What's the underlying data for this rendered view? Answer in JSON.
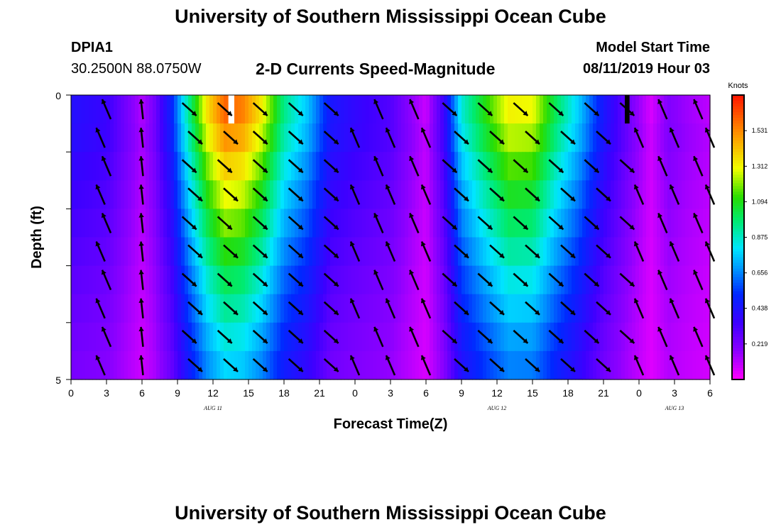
{
  "header": {
    "title": "University of Southern Mississippi Ocean Cube",
    "footer_title": "University of Southern Mississippi Ocean Cube",
    "station_id": "DPIA1",
    "station_location": "30.2500N 88.0750W",
    "subtitle": "2-D Currents Speed-Magnitude",
    "model_start_label": "Model Start Time",
    "model_start_value": "08/11/2019 Hour 03"
  },
  "chart_data": {
    "type": "heatmap",
    "title": "2-D Currents Speed-Magnitude",
    "xlabel": "Forecast Time(Z)",
    "ylabel": "Depth (ft)",
    "x_hours_from_aug11_00": [
      0,
      54
    ],
    "ylim": [
      0,
      5
    ],
    "y_tick_labels": [
      "0",
      "5"
    ],
    "y_tick_count": 6,
    "x_tick_labels": [
      "0",
      "3",
      "6",
      "9",
      "12",
      "15",
      "18",
      "21",
      "0",
      "3",
      "6",
      "9",
      "12",
      "15",
      "18",
      "21",
      "0",
      "3",
      "6"
    ],
    "date_labels": [
      {
        "text": "AUG 11",
        "hour": 12
      },
      {
        "text": "AUG 12",
        "hour": 36
      },
      {
        "text": "AUG 13",
        "hour": 51
      }
    ],
    "colorbar": {
      "label": "Knots",
      "min": 0,
      "max": 1.75,
      "ticks": [
        "1.531",
        "1.312",
        "1.094",
        "0.875",
        "0.656",
        "0.438",
        "0.219"
      ],
      "tick_values": [
        1.531,
        1.312,
        1.094,
        0.875,
        0.656,
        0.438,
        0.219
      ]
    },
    "depth_layer_factors": [
      1.0,
      0.93,
      0.86,
      0.8,
      0.74,
      0.68,
      0.62,
      0.57,
      0.52,
      0.48
    ],
    "surface_speed_knots": [
      {
        "h": 0,
        "v": 0.42
      },
      {
        "h": 3,
        "v": 0.36
      },
      {
        "h": 6,
        "v": 0.12
      },
      {
        "h": 7,
        "v": 0.22
      },
      {
        "h": 8.5,
        "v": 0.5
      },
      {
        "h": 10,
        "v": 0.95
      },
      {
        "h": 11.5,
        "v": 1.35
      },
      {
        "h": 13,
        "v": 1.6
      },
      {
        "h": 14.5,
        "v": 1.55
      },
      {
        "h": 16,
        "v": 1.35
      },
      {
        "h": 18,
        "v": 0.95
      },
      {
        "h": 20,
        "v": 0.75
      },
      {
        "h": 22,
        "v": 0.45
      },
      {
        "h": 24,
        "v": 0.38
      },
      {
        "h": 27,
        "v": 0.3
      },
      {
        "h": 30,
        "v": 0.08
      },
      {
        "h": 31.5,
        "v": 0.35
      },
      {
        "h": 33,
        "v": 0.85
      },
      {
        "h": 35,
        "v": 1.1
      },
      {
        "h": 37,
        "v": 1.32
      },
      {
        "h": 39,
        "v": 1.3
      },
      {
        "h": 41,
        "v": 1.0
      },
      {
        "h": 43,
        "v": 0.75
      },
      {
        "h": 45,
        "v": 0.45
      },
      {
        "h": 47,
        "v": 0.25
      },
      {
        "h": 49,
        "v": 0.06
      },
      {
        "h": 50.5,
        "v": 0.2
      },
      {
        "h": 52,
        "v": 0.15
      },
      {
        "h": 54,
        "v": 0.1
      }
    ],
    "missing_cells": [
      {
        "h_start": 13.3,
        "h_end": 13.8,
        "layer": 0,
        "color": "#ffffff"
      },
      {
        "h_start": 46.8,
        "h_end": 47.2,
        "layer": 0,
        "color": "#000000"
      }
    ],
    "vectors": {
      "hours_row_a": [
        3,
        6,
        10,
        13,
        16,
        19,
        22,
        26,
        29,
        32,
        35,
        38,
        41,
        44,
        47,
        50,
        53
      ],
      "hours_row_b": [
        2.5,
        6,
        10.5,
        13.5,
        16,
        19,
        22,
        24,
        27,
        30,
        33,
        36,
        39,
        42,
        45,
        48,
        51,
        54
      ],
      "rows": [
        {
          "depth": 0.25,
          "set": "a",
          "speeds": [
            0.45,
            0.15,
            1.0,
            1.5,
            1.4,
            0.9,
            0.5,
            0.35,
            0.3,
            0.1,
            0.8,
            1.1,
            1.3,
            0.9,
            0.4,
            0.1,
            0.1
          ]
        },
        {
          "depth": 0.75,
          "set": "b",
          "speeds": [
            0.4,
            0.12,
            1.0,
            1.4,
            1.3,
            0.9,
            0.5,
            0.35,
            0.3,
            0.1,
            0.8,
            1.0,
            1.2,
            0.9,
            0.4,
            0.1,
            0.1,
            0.1
          ]
        },
        {
          "depth": 1.25,
          "set": "a",
          "speeds": [
            0.4,
            0.12,
            0.9,
            1.3,
            1.2,
            0.8,
            0.45,
            0.3,
            0.25,
            0.1,
            0.75,
            0.95,
            1.1,
            0.8,
            0.35,
            0.1,
            0.1
          ]
        },
        {
          "depth": 1.75,
          "set": "b",
          "speeds": [
            0.35,
            0.1,
            0.9,
            1.2,
            1.1,
            0.8,
            0.45,
            0.3,
            0.25,
            0.1,
            0.7,
            0.9,
            1.0,
            0.8,
            0.35,
            0.1,
            0.1,
            0.1
          ]
        },
        {
          "depth": 2.25,
          "set": "a",
          "speeds": [
            0.35,
            0.1,
            0.85,
            1.1,
            1.0,
            0.75,
            0.4,
            0.3,
            0.25,
            0.1,
            0.7,
            0.85,
            0.95,
            0.75,
            0.3,
            0.1,
            0.1
          ]
        },
        {
          "depth": 2.75,
          "set": "b",
          "speeds": [
            0.3,
            0.1,
            0.8,
            1.0,
            0.95,
            0.7,
            0.4,
            0.25,
            0.2,
            0.1,
            0.65,
            0.8,
            0.9,
            0.7,
            0.3,
            0.1,
            0.1,
            0.1
          ]
        },
        {
          "depth": 3.25,
          "set": "a",
          "speeds": [
            0.3,
            0.1,
            0.75,
            0.95,
            0.9,
            0.65,
            0.35,
            0.25,
            0.2,
            0.1,
            0.6,
            0.75,
            0.85,
            0.65,
            0.3,
            0.1,
            0.1
          ]
        },
        {
          "depth": 3.75,
          "set": "b",
          "speeds": [
            0.3,
            0.1,
            0.7,
            0.9,
            0.85,
            0.6,
            0.35,
            0.25,
            0.2,
            0.1,
            0.6,
            0.7,
            0.8,
            0.6,
            0.3,
            0.1,
            0.1,
            0.1
          ]
        },
        {
          "depth": 4.25,
          "set": "a",
          "speeds": [
            0.25,
            0.1,
            0.7,
            0.85,
            0.8,
            0.6,
            0.3,
            0.2,
            0.2,
            0.1,
            0.55,
            0.7,
            0.75,
            0.6,
            0.25,
            0.1,
            0.1
          ]
        },
        {
          "depth": 4.75,
          "set": "b",
          "speeds": [
            0.25,
            0.1,
            0.65,
            0.8,
            0.75,
            0.55,
            0.3,
            0.2,
            0.2,
            0.1,
            0.55,
            0.65,
            0.7,
            0.55,
            0.25,
            0.1,
            0.1,
            0.1
          ]
        }
      ],
      "direction_rule": "ebb (southeast) between forecast hours 8-23 and 31-47; flood (north-northwest) otherwise"
    }
  }
}
